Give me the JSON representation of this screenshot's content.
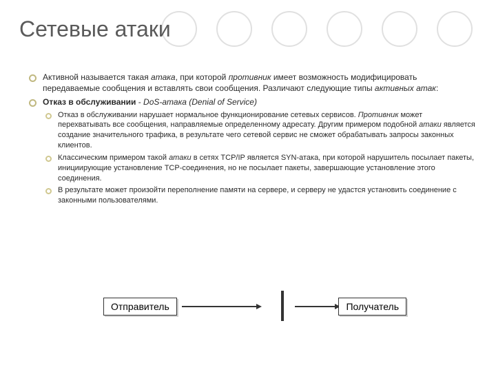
{
  "title": "Сетевые атаки",
  "decor": {
    "circle_count": 6,
    "circle_border": "#e0e0e0"
  },
  "bullets": {
    "b1_pre": "Активной называется такая ",
    "b1_em1": "атака",
    "b1_mid": ", при которой ",
    "b1_em2": "противник",
    "b1_post": " имеет возможность модифицировать передаваемые сообщения и вставлять свои сообщения. Различают следующие типы ",
    "b1_em3": "активных атак",
    "b1_end": ":",
    "b2_strong": "Отказ в обслуживании",
    "b2_mid": " - ",
    "b2_em": "DoS-атака (Denial of Service)",
    "s1_pre": " Отказ в обслуживании нарушает нормальное функционирование сетевых сервисов. ",
    "s1_em1": "Противник",
    "s1_mid": " может перехватывать все сообщения, направляемые определенному адресату. Другим примером подобной ",
    "s1_em2": "атаки",
    "s1_post": " является создание значительного трафика, в результате чего сетевой сервис не сможет обрабатывать запросы законных клиентов.",
    "s2_pre": "Классическим примером такой ",
    "s2_em": "атаки",
    "s2_post": " в сетях TCP/IP является SYN-атака, при которой нарушитель посылает пакеты, инициирующие установление TCP-соединения, но не посылает пакеты, завершающие установление этого соединения.",
    "s3": "В результате может произойти переполнение памяти на сервере, и серверу не удастся установить соединение с законными пользователями."
  },
  "diagram": {
    "type": "flowchart",
    "sender_label": "Отправитель",
    "receiver_label": "Получатель",
    "node_bg": "#ffffff",
    "node_border": "#333333",
    "node_shadow": "#d0d0d0",
    "barrier_color": "#333333",
    "arrow_color": "#333333",
    "font_size": 14
  }
}
